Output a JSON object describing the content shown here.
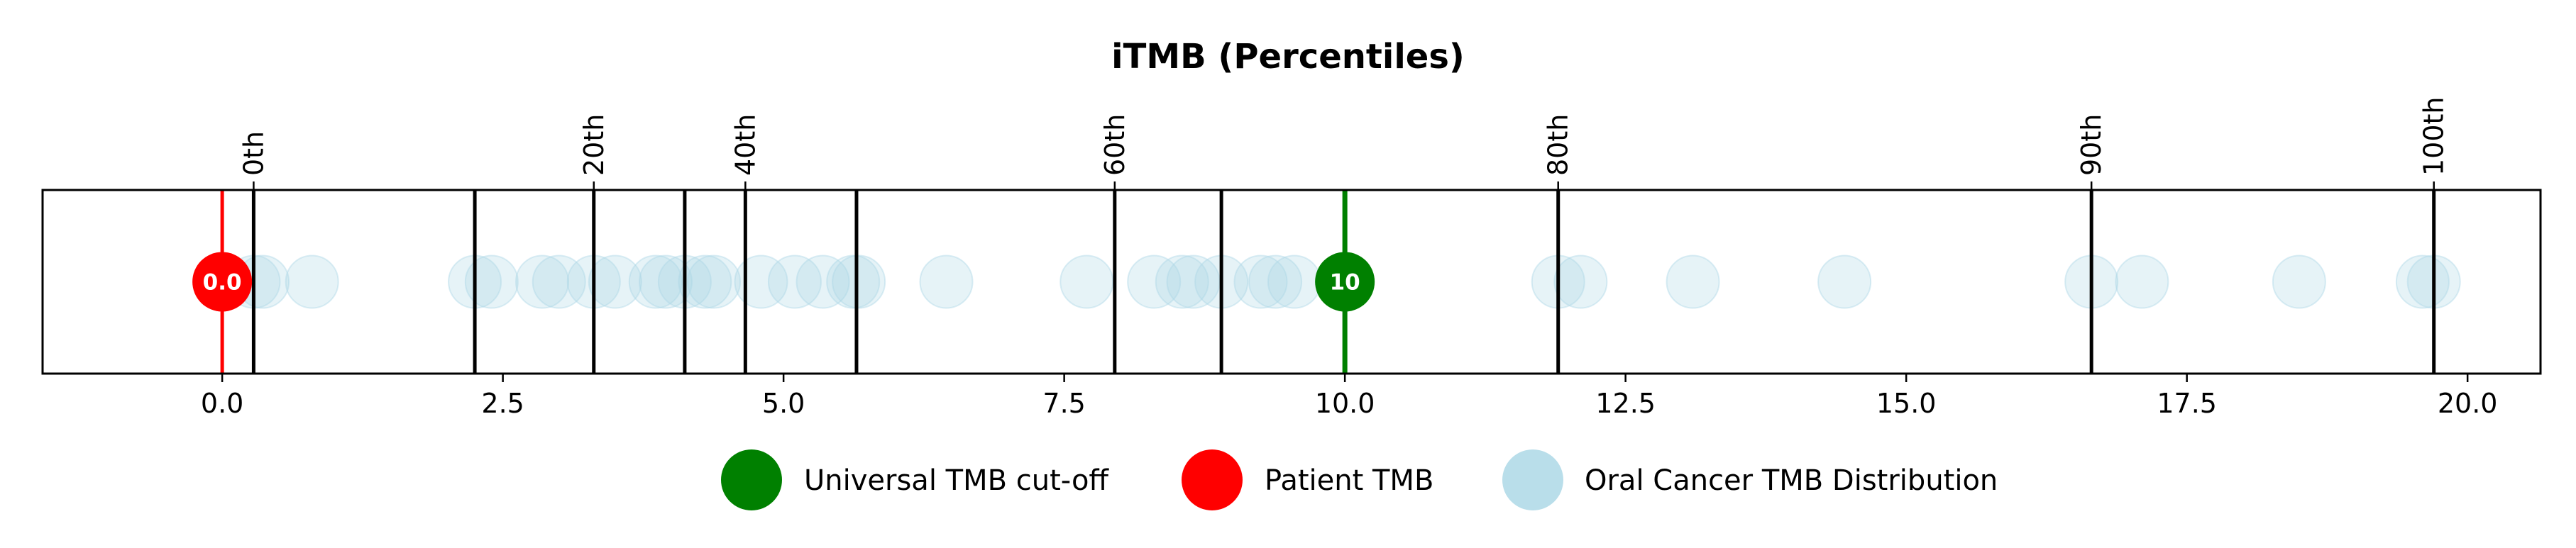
{
  "chart_data": {
    "type": "scatter",
    "title": "iTMB (Percentiles)",
    "xlim": [
      -1.6,
      20.65
    ],
    "x_ticks": [
      0.0,
      2.5,
      5.0,
      7.5,
      10.0,
      12.5,
      15.0,
      17.5,
      20.0
    ],
    "x_tick_labels": [
      "0.0",
      "2.5",
      "5.0",
      "7.5",
      "10.0",
      "12.5",
      "15.0",
      "17.5",
      "20.0"
    ],
    "percentile_lines": [
      0.28,
      2.25,
      3.31,
      4.12,
      4.66,
      5.65,
      7.95,
      8.9,
      11.9,
      16.65,
      19.7
    ],
    "percentile_labels": [
      {
        "label": "0th",
        "x": 0.28
      },
      {
        "label": "20th",
        "x": 3.31
      },
      {
        "label": "40th",
        "x": 4.66
      },
      {
        "label": "60th",
        "x": 7.95
      },
      {
        "label": "80th",
        "x": 11.9
      },
      {
        "label": "90th",
        "x": 16.65
      },
      {
        "label": "100th",
        "x": 19.7
      }
    ],
    "series": [
      {
        "name": "Universal TMB cut-off",
        "color": "#008000",
        "x": [
          10.0
        ],
        "marker_label": "10"
      },
      {
        "name": "Patient TMB",
        "color": "#ff0000",
        "x": [
          0.0
        ],
        "marker_label": "0.0"
      },
      {
        "name": "Oral Cancer TMB Distribution",
        "color": "#add8e6",
        "x": [
          0.28,
          0.36,
          0.8,
          2.25,
          2.4,
          2.85,
          3.0,
          3.31,
          3.5,
          3.86,
          3.95,
          4.12,
          4.3,
          4.38,
          4.8,
          5.1,
          5.35,
          5.62,
          5.67,
          6.45,
          7.7,
          8.3,
          8.55,
          8.65,
          8.9,
          9.25,
          9.38,
          9.55,
          11.9,
          12.1,
          13.1,
          14.45,
          16.65,
          17.1,
          18.5,
          19.6,
          19.7
        ]
      }
    ],
    "legend": "bottom-center",
    "grid": false
  }
}
